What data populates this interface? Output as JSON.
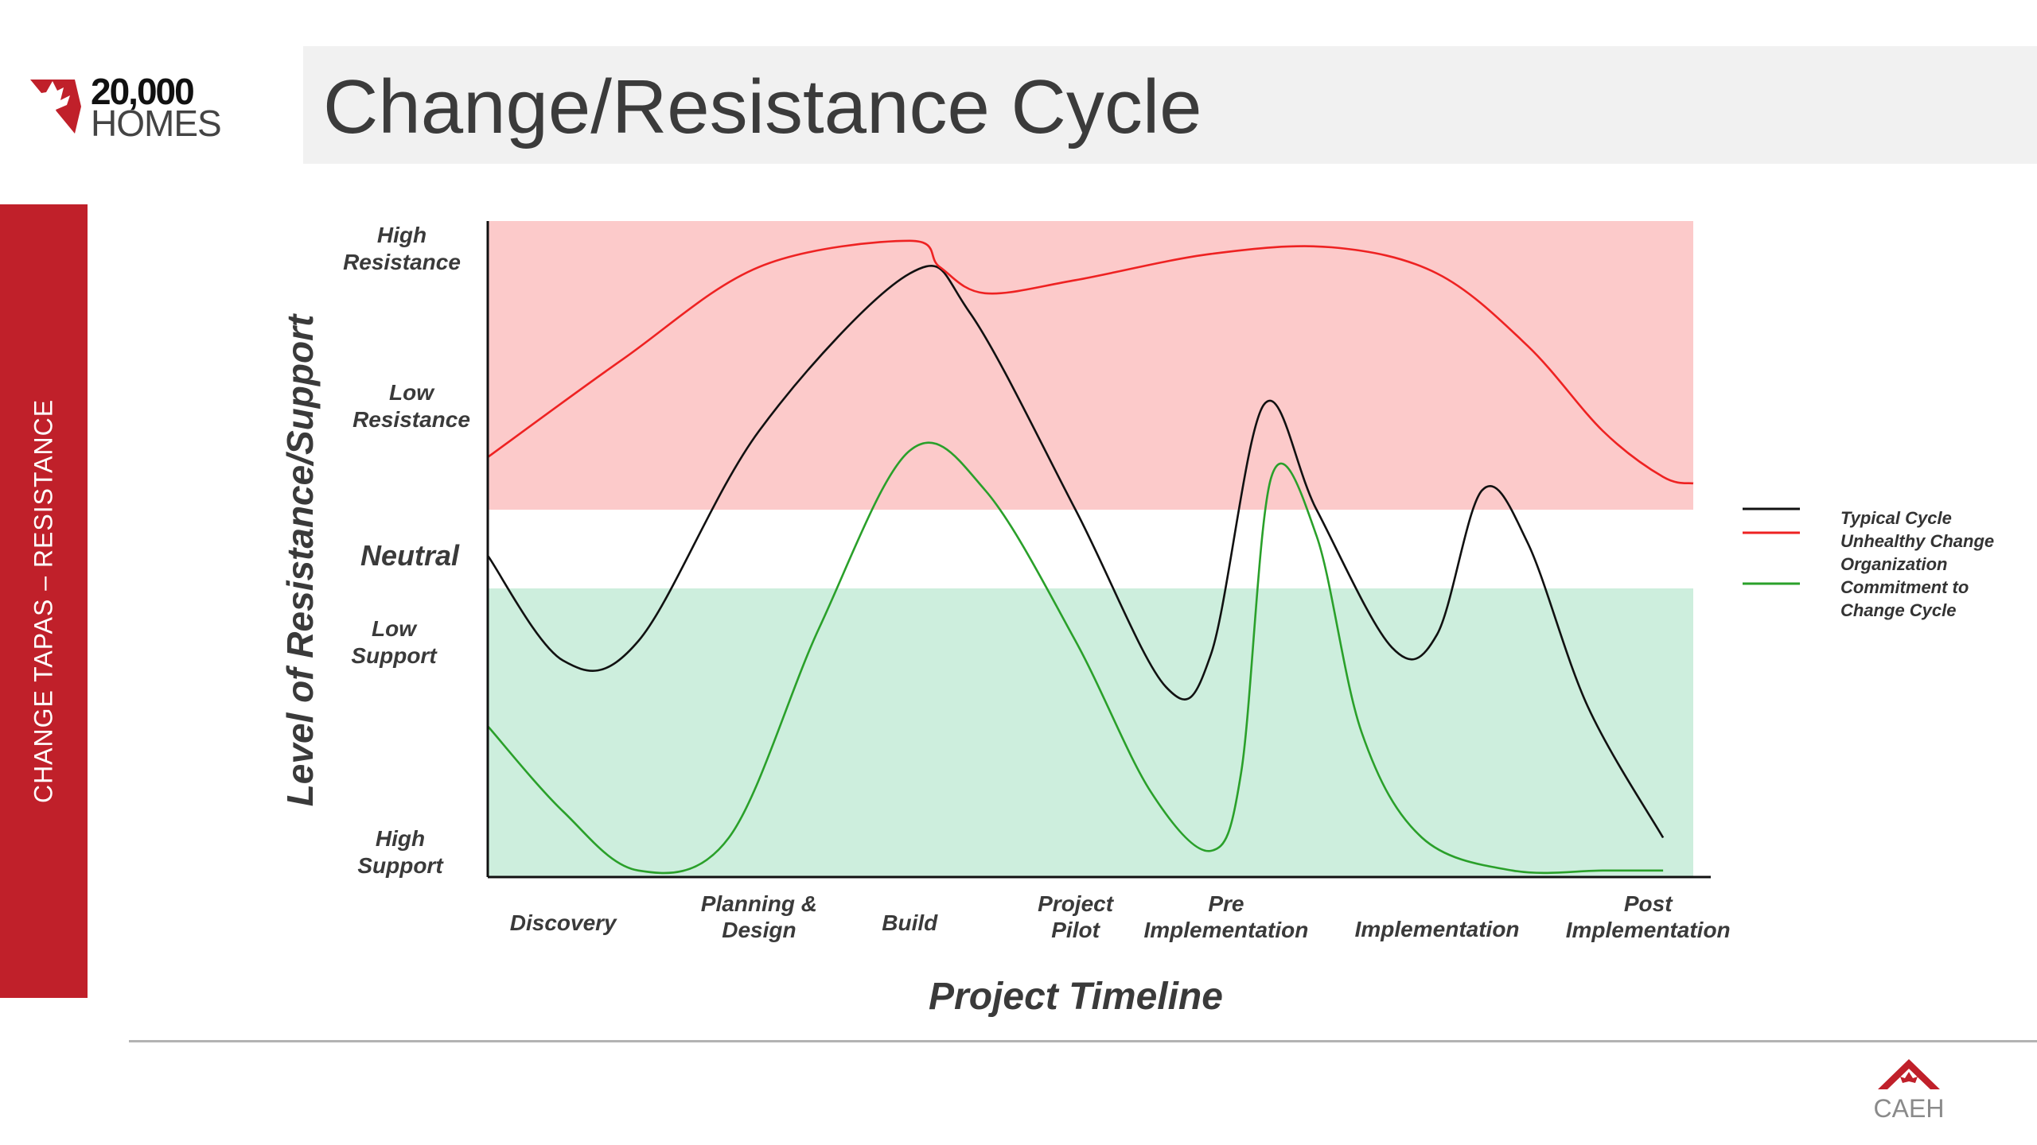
{
  "logo": {
    "number": "20,000",
    "word": "HOMES"
  },
  "title": "Change/Resistance Cycle",
  "side_tab": "CHANGE TAPAS – RESISTANCE",
  "footer_logo": "CAEH",
  "colors": {
    "brand_red": "#c0202a",
    "resistance_zone": "#fccaca",
    "support_zone": "#cdeedd",
    "typical": "#111111",
    "unhealthy": "#ee2222",
    "commitment": "#2aa02a"
  },
  "chart_data": {
    "type": "line",
    "xlabel": "Project Timeline",
    "ylabel": "Level of Resistance/Support",
    "categories": [
      "Discovery",
      "Planning & Design",
      "Build",
      "Project Pilot",
      "Pre Implementation",
      "Implementation",
      "Post Implementation"
    ],
    "category_positions": [
      0.5,
      1.8,
      2.8,
      3.9,
      4.9,
      6.3,
      7.7
    ],
    "xlim": [
      0,
      8
    ],
    "ylim": [
      0,
      10
    ],
    "y_ticks": [
      {
        "label": "High Resistance",
        "value": 9.6
      },
      {
        "label": "Low Resistance",
        "value": 7.2
      },
      {
        "label": "Neutral",
        "value": 4.9
      },
      {
        "label": "Low Support",
        "value": 3.6
      },
      {
        "label": "High Support",
        "value": 0.4
      }
    ],
    "zones": [
      {
        "name": "resistance",
        "from": 5.6,
        "to": 10
      },
      {
        "name": "neutral",
        "from": 4.4,
        "to": 5.6
      },
      {
        "name": "support",
        "from": 0,
        "to": 4.4
      }
    ],
    "legend_position": "right",
    "series": [
      {
        "name": "Typical Cycle",
        "points": [
          [
            0,
            4.9
          ],
          [
            0.5,
            3.3
          ],
          [
            1.0,
            3.6
          ],
          [
            1.8,
            6.8
          ],
          [
            2.8,
            9.2
          ],
          [
            3.2,
            8.6
          ],
          [
            3.9,
            5.6
          ],
          [
            4.5,
            2.9
          ],
          [
            4.8,
            3.4
          ],
          [
            5.15,
            7.2
          ],
          [
            5.5,
            5.6
          ],
          [
            6.0,
            3.5
          ],
          [
            6.3,
            3.7
          ],
          [
            6.6,
            5.9
          ],
          [
            6.9,
            5.1
          ],
          [
            7.3,
            2.6
          ],
          [
            7.8,
            0.6
          ]
        ]
      },
      {
        "name": "Unhealthy Change Organization",
        "points": [
          [
            0,
            6.4
          ],
          [
            0.9,
            7.9
          ],
          [
            1.8,
            9.3
          ],
          [
            2.8,
            9.7
          ],
          [
            3.0,
            9.3
          ],
          [
            3.3,
            8.9
          ],
          [
            3.9,
            9.1
          ],
          [
            4.8,
            9.5
          ],
          [
            5.6,
            9.6
          ],
          [
            6.3,
            9.2
          ],
          [
            6.9,
            8.1
          ],
          [
            7.4,
            6.8
          ],
          [
            7.8,
            6.1
          ],
          [
            8.0,
            6.0
          ]
        ]
      },
      {
        "name": "Commitment to Change Cycle",
        "points": [
          [
            0,
            2.3
          ],
          [
            0.5,
            1.0
          ],
          [
            1.0,
            0.1
          ],
          [
            1.6,
            0.6
          ],
          [
            2.2,
            3.8
          ],
          [
            2.8,
            6.5
          ],
          [
            3.3,
            5.9
          ],
          [
            3.9,
            3.6
          ],
          [
            4.4,
            1.3
          ],
          [
            4.8,
            0.4
          ],
          [
            5.0,
            1.6
          ],
          [
            5.2,
            6.1
          ],
          [
            5.5,
            5.2
          ],
          [
            5.8,
            2.2
          ],
          [
            6.2,
            0.6
          ],
          [
            6.8,
            0.1
          ],
          [
            7.4,
            0.1
          ],
          [
            7.8,
            0.1
          ]
        ]
      }
    ]
  }
}
